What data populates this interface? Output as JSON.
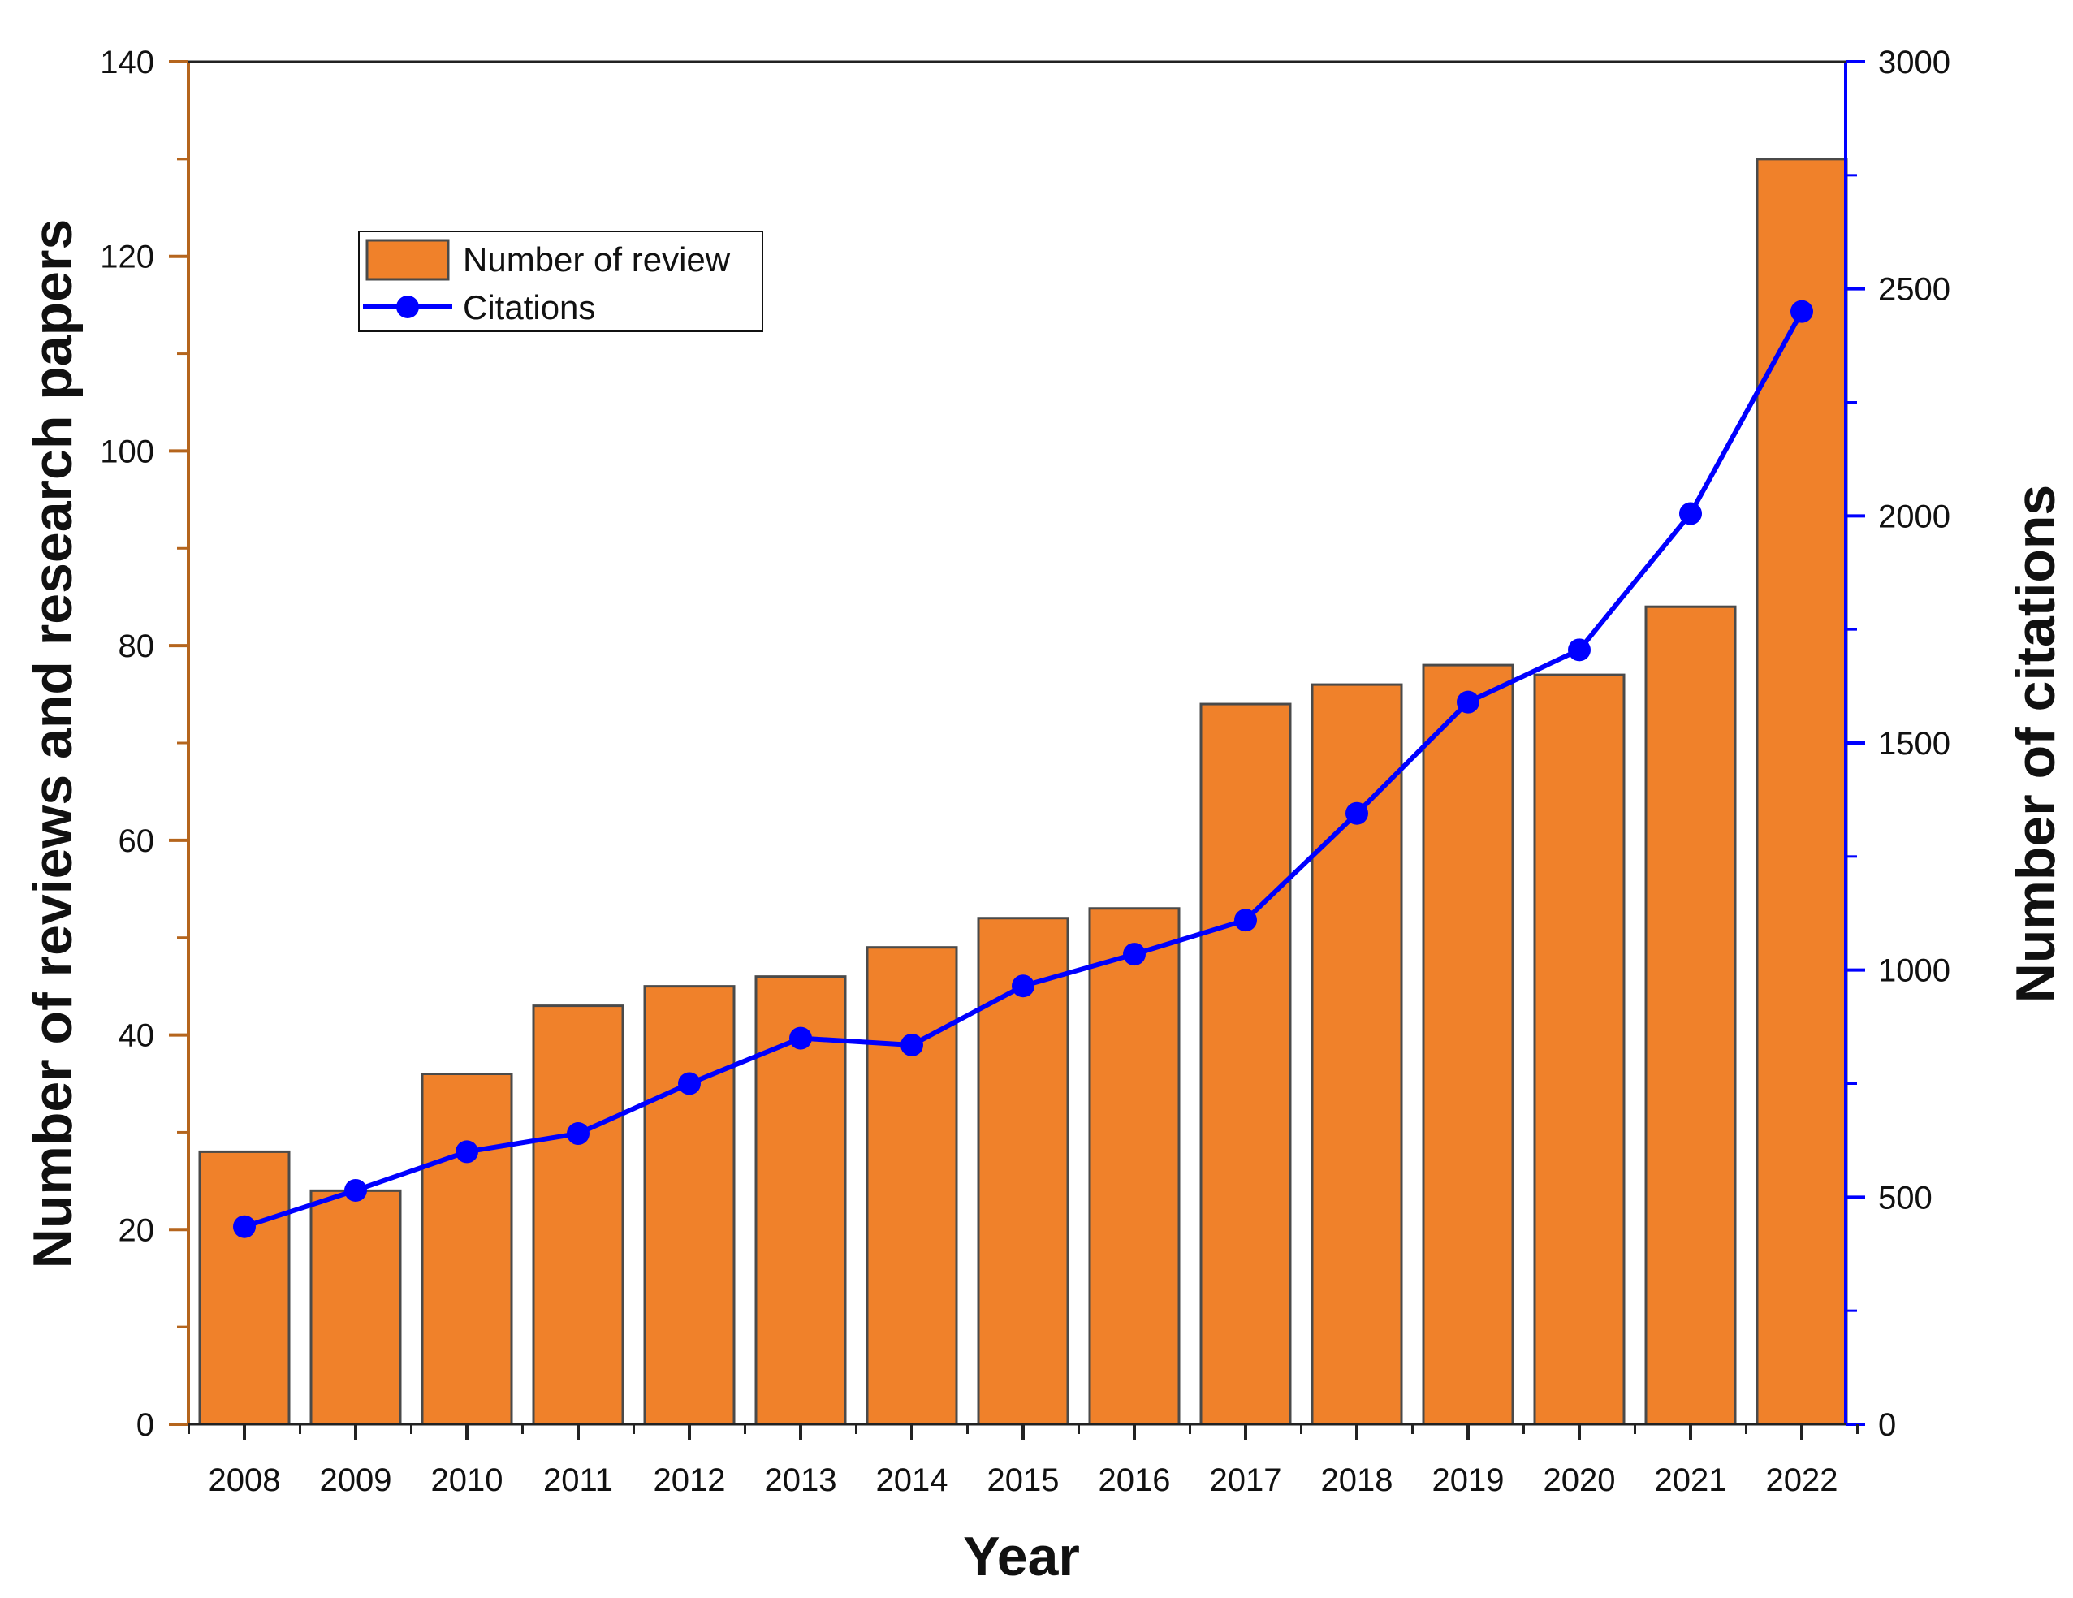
{
  "chart_data": {
    "type": "bar+line",
    "title": "",
    "xlabel": "Year",
    "ylabel_left": "Number of reviews and research papers",
    "ylabel_right": "Number of citations",
    "categories": [
      "2008",
      "2009",
      "2010",
      "2011",
      "2012",
      "2013",
      "2014",
      "2015",
      "2016",
      "2017",
      "2018",
      "2019",
      "2020",
      "2021",
      "2022"
    ],
    "series": [
      {
        "name": "Number of review",
        "type": "bar",
        "axis": "left",
        "color": "#F0812A",
        "edge_color": "#4a4a4a",
        "values": [
          28,
          24,
          36,
          43,
          45,
          46,
          49,
          52,
          53,
          74,
          76,
          78,
          77,
          84,
          130
        ]
      },
      {
        "name": "Citations",
        "type": "line",
        "axis": "right",
        "color": "#0000FF",
        "values": [
          435,
          515,
          600,
          640,
          750,
          850,
          835,
          965,
          1035,
          1110,
          1345,
          1590,
          1705,
          2005,
          2450
        ]
      }
    ],
    "ylim_left": [
      0,
      140
    ],
    "ylim_right": [
      0,
      3000
    ],
    "yticks_left": [
      0,
      20,
      40,
      60,
      80,
      100,
      120,
      140
    ],
    "yticks_right": [
      0,
      500,
      1000,
      1500,
      2000,
      2500,
      3000
    ],
    "left_axis_color": "#B5651D",
    "right_axis_color": "#0000FF",
    "grid": false,
    "legend_position": "upper-left"
  }
}
